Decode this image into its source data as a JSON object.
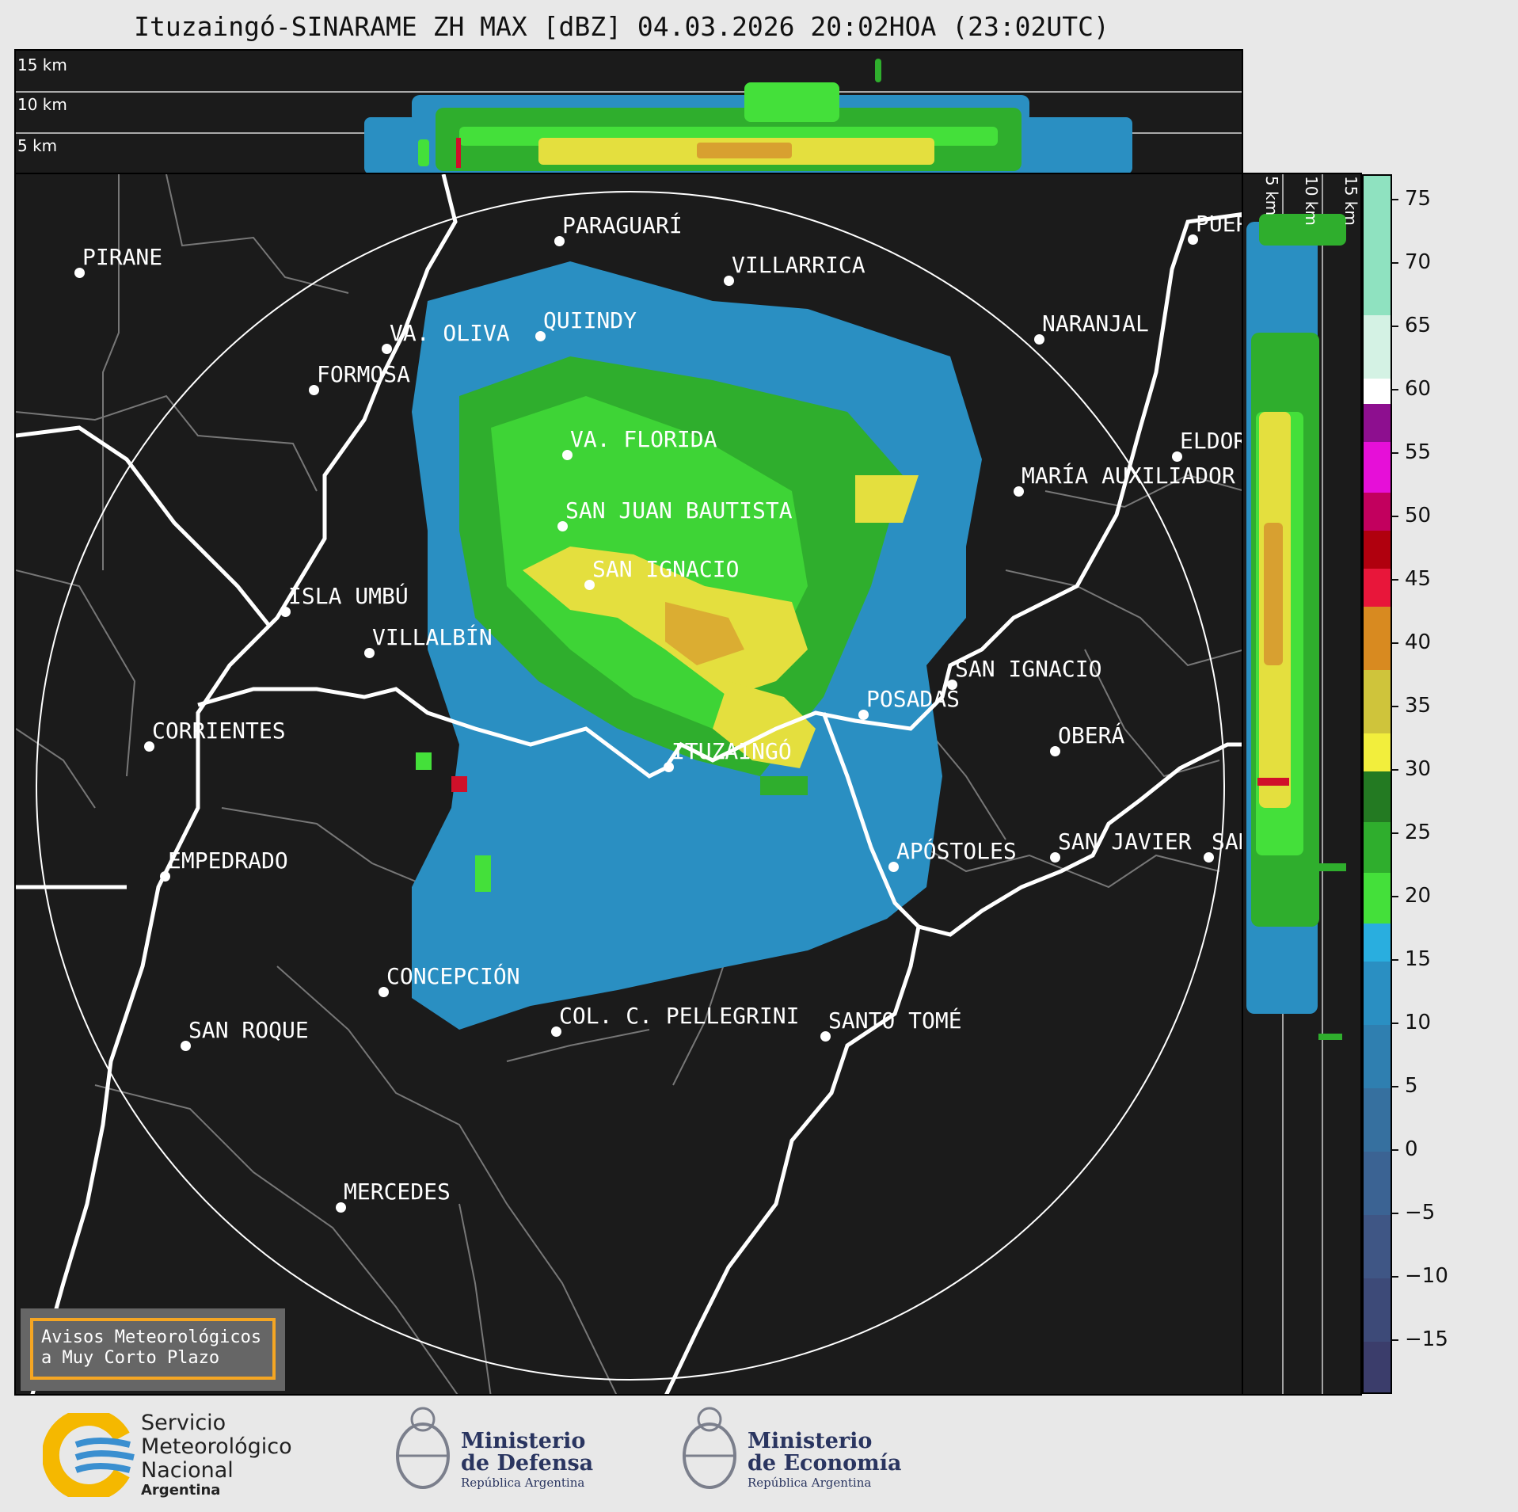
{
  "title": "Ituzaingó-SINARAME ZH MAX [dBZ] 04.03.2026 20:02HOA (23:02UTC)",
  "altitude_labels": [
    "15 km",
    "10 km",
    "5 km"
  ],
  "cities": [
    {
      "name": "PIRANE"
    },
    {
      "name": "PARAGUARÍ"
    },
    {
      "name": "VILLARRICA"
    },
    {
      "name": "QUIINDY"
    },
    {
      "name": "VA. OLIVA"
    },
    {
      "name": "NARANJAL"
    },
    {
      "name": "FORMOSA"
    },
    {
      "name": "PUER"
    },
    {
      "name": "VA. FLORIDA"
    },
    {
      "name": "ELDOR"
    },
    {
      "name": "MARÍA AUXILIADOR"
    },
    {
      "name": "SAN JUAN BAUTISTA"
    },
    {
      "name": "SAN IGNACIO"
    },
    {
      "name": "ISLA UMBÚ"
    },
    {
      "name": "VILLALBÍN"
    },
    {
      "name": "SAN IGNACIO"
    },
    {
      "name": "POSADAS"
    },
    {
      "name": "CORRIENTES"
    },
    {
      "name": "OBERÁ"
    },
    {
      "name": "ITUZAINGÓ"
    },
    {
      "name": "EMPEDRADO"
    },
    {
      "name": "APÓSTOLES"
    },
    {
      "name": "SAN JAVIER"
    },
    {
      "name": "SAN"
    },
    {
      "name": "CONCEPCIÓN"
    },
    {
      "name": "COL. C. PELLEGRINI"
    },
    {
      "name": "SANTO TOMÉ"
    },
    {
      "name": "SAN ROQUE"
    },
    {
      "name": "MERCEDES"
    }
  ],
  "colorbar": {
    "ticks": [
      "75",
      "70",
      "65",
      "60",
      "55",
      "50",
      "45",
      "40",
      "35",
      "30",
      "25",
      "20",
      "15",
      "10",
      "5",
      "0",
      "−5",
      "−10",
      "−15"
    ],
    "range": [
      -19,
      77
    ],
    "bands": [
      {
        "from": -19,
        "to": -15,
        "color": "#3b3d6b"
      },
      {
        "from": -15,
        "to": -10,
        "color": "#3d4a78"
      },
      {
        "from": -10,
        "to": -5,
        "color": "#3f5685"
      },
      {
        "from": -5,
        "to": 0,
        "color": "#3b6393"
      },
      {
        "from": 0,
        "to": 5,
        "color": "#36709f"
      },
      {
        "from": 5,
        "to": 10,
        "color": "#2f7fb0"
      },
      {
        "from": 10,
        "to": 15,
        "color": "#2a8fc2"
      },
      {
        "from": 15,
        "to": 18,
        "color": "#29aedf"
      },
      {
        "from": 18,
        "to": 22,
        "color": "#44e03a"
      },
      {
        "from": 22,
        "to": 26,
        "color": "#2fae2d"
      },
      {
        "from": 26,
        "to": 30,
        "color": "#237a22"
      },
      {
        "from": 30,
        "to": 33,
        "color": "#f2ee3c"
      },
      {
        "from": 33,
        "to": 38,
        "color": "#cfc43b"
      },
      {
        "from": 38,
        "to": 43,
        "color": "#d88a20"
      },
      {
        "from": 43,
        "to": 46,
        "color": "#e8163a"
      },
      {
        "from": 46,
        "to": 49,
        "color": "#b0000e"
      },
      {
        "from": 49,
        "to": 52,
        "color": "#c2005e"
      },
      {
        "from": 52,
        "to": 56,
        "color": "#e60fd8"
      },
      {
        "from": 56,
        "to": 59,
        "color": "#8d0f8f"
      },
      {
        "from": 59,
        "to": 61,
        "color": "#ffffff"
      },
      {
        "from": 61,
        "to": 66,
        "color": "#d4f2e4"
      },
      {
        "from": 66,
        "to": 77,
        "color": "#8fe2c0"
      }
    ]
  },
  "avisos": {
    "line1": "Avisos Meteorológicos",
    "line2": "a Muy Corto Plazo"
  },
  "logos": {
    "smn": {
      "line1": "Servicio",
      "line2": "Meteorológico",
      "line3": "Nacional",
      "line4": "Argentina"
    },
    "defensa": {
      "line1": "Ministerio",
      "line2": "de Defensa",
      "line3": "República Argentina"
    },
    "economia": {
      "line1": "Ministerio",
      "line2": "de Economía",
      "line3": "República Argentina"
    }
  },
  "colors": {
    "blue": "#2a8fc2",
    "green": "#2fae2d",
    "lightgreen": "#44e03a",
    "yellow": "#d8d540",
    "orange": "#d88a20",
    "red": "#d0102a"
  }
}
